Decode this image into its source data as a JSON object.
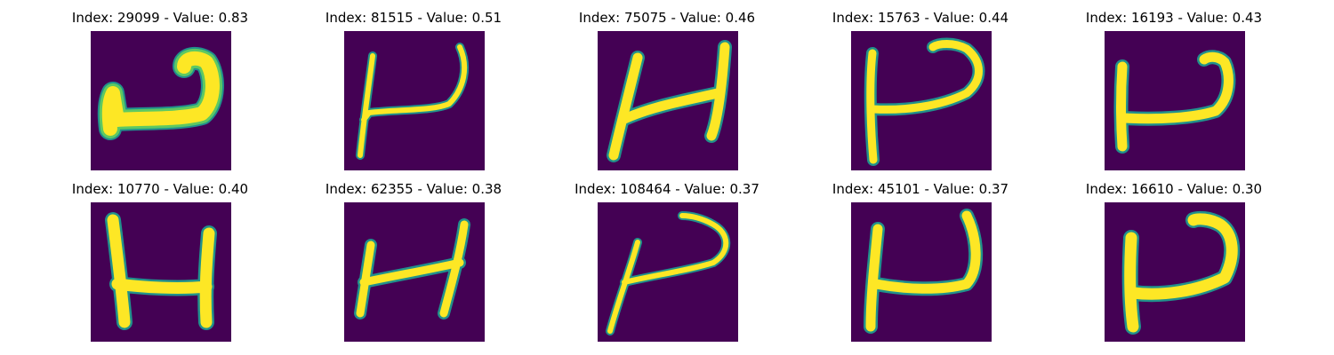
{
  "colors": {
    "background": "#440154",
    "stroke_edge": "#21918c",
    "stroke_mid": "#5ec962",
    "stroke_core": "#fde725"
  },
  "panels": [
    {
      "title": "Index: 29099 - Value: 0.83",
      "glyph": "backward-j-hook"
    },
    {
      "title": "Index: 81515 - Value: 0.51",
      "glyph": "slanted-h-hook"
    },
    {
      "title": "Index: 75075 - Value: 0.46",
      "glyph": "slanted-h"
    },
    {
      "title": "Index: 15763 - Value: 0.44",
      "glyph": "p-shape"
    },
    {
      "title": "Index: 16193 - Value: 0.43",
      "glyph": "h-hook"
    },
    {
      "title": "Index: 10770 - Value: 0.40",
      "glyph": "h-shape"
    },
    {
      "title": "Index: 62355 - Value: 0.38",
      "glyph": "slanted-h"
    },
    {
      "title": "Index: 108464 - Value: 0.37",
      "glyph": "slanted-p"
    },
    {
      "title": "Index: 45101 - Value: 0.37",
      "glyph": "h-hook"
    },
    {
      "title": "Index: 16610 - Value: 0.30",
      "glyph": "h-hook"
    }
  ]
}
